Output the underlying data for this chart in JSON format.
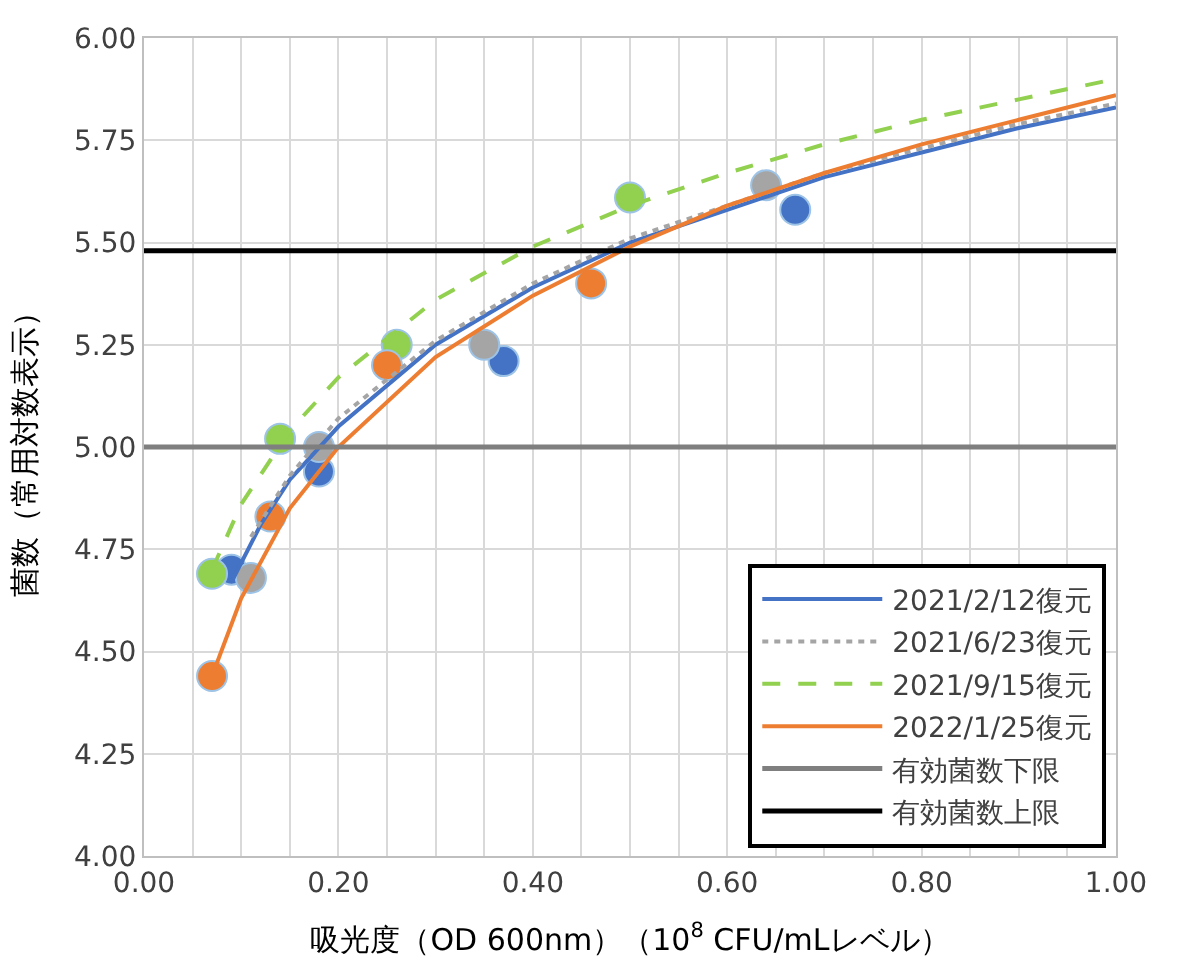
{
  "chart_data": {
    "type": "scatter",
    "xlabel": "吸光度（OD 600nm）（10$^{8}$ CFU/mLレベル）",
    "ylabel": "菌数（常用対数表示）",
    "xlim": [
      0,
      1.0
    ],
    "ylim": [
      4.0,
      6.0
    ],
    "xticks": [
      {
        "value": 0,
        "label": "0.00"
      },
      {
        "value": 0.05,
        "label": null
      },
      {
        "value": 0.1,
        "label": null
      },
      {
        "value": 0.15,
        "label": null
      },
      {
        "value": 0.2,
        "label": "0.20"
      },
      {
        "value": 0.25,
        "label": null
      },
      {
        "value": 0.3,
        "label": null
      },
      {
        "value": 0.35,
        "label": null
      },
      {
        "value": 0.4,
        "label": "0.40"
      },
      {
        "value": 0.45,
        "label": null
      },
      {
        "value": 0.5,
        "label": null
      },
      {
        "value": 0.55,
        "label": null
      },
      {
        "value": 0.6,
        "label": "0.60"
      },
      {
        "value": 0.65,
        "label": null
      },
      {
        "value": 0.7,
        "label": null
      },
      {
        "value": 0.75,
        "label": null
      },
      {
        "value": 0.8,
        "label": "0.80"
      },
      {
        "value": 0.85,
        "label": null
      },
      {
        "value": 0.9,
        "label": null
      },
      {
        "value": 0.95,
        "label": null
      },
      {
        "value": 1.0,
        "label": "1.00"
      }
    ],
    "yticks": [
      {
        "value": 4.0,
        "label": "4.00"
      },
      {
        "value": 4.25,
        "label": "4.25"
      },
      {
        "value": 4.5,
        "label": "4.50"
      },
      {
        "value": 4.75,
        "label": "4.75"
      },
      {
        "value": 5.0,
        "label": "5.00"
      },
      {
        "value": 5.25,
        "label": "5.25"
      },
      {
        "value": 5.5,
        "label": "5.50"
      },
      {
        "value": 5.75,
        "label": "5.75"
      },
      {
        "value": 6.0,
        "label": "6.00"
      }
    ],
    "grid": true,
    "legend": "bottom right",
    "series": [
      {
        "marker": "circle",
        "color": "#4472c4",
        "x": [
          0.09,
          0.18,
          0.37,
          0.67
        ],
        "values": [
          4.7,
          4.94,
          5.21,
          5.58
        ]
      },
      {
        "marker": "circle",
        "color": "#a5a5a5",
        "x": [
          0.11,
          0.18,
          0.35,
          0.64
        ],
        "values": [
          4.68,
          5.0,
          5.25,
          5.64
        ]
      },
      {
        "marker": "circle",
        "color": "#92d050",
        "x": [
          0.07,
          0.14,
          0.26,
          0.5
        ],
        "values": [
          4.69,
          5.02,
          5.25,
          5.61
        ]
      },
      {
        "marker": "circle",
        "color": "#ed7d31",
        "x": [
          0.07,
          0.13,
          0.25,
          0.46
        ],
        "values": [
          4.44,
          4.83,
          5.2,
          5.4
        ]
      },
      {
        "type": "line",
        "name": "2021/2/12復元",
        "marker": "none",
        "line_style": "solid",
        "color": "#4472c4",
        "x": [
          0.09,
          0.12,
          0.15,
          0.2,
          0.3,
          0.4,
          0.5,
          0.6,
          0.7,
          0.8,
          0.9,
          1.0
        ],
        "values": [
          4.67,
          4.81,
          4.92,
          5.05,
          5.25,
          5.39,
          5.5,
          5.58,
          5.66,
          5.72,
          5.78,
          5.83
        ]
      },
      {
        "type": "line",
        "name": "2021/6/23復元",
        "marker": "none",
        "line_style": "dotted",
        "color": "#a5a5a5",
        "x": [
          0.11,
          0.15,
          0.2,
          0.3,
          0.4,
          0.5,
          0.6,
          0.7,
          0.8,
          0.9,
          1.0
        ],
        "values": [
          4.78,
          4.93,
          5.07,
          5.26,
          5.4,
          5.51,
          5.59,
          5.67,
          5.73,
          5.79,
          5.84
        ]
      },
      {
        "type": "line",
        "name": "2021/9/15復元",
        "marker": "none",
        "line_style": "dashed",
        "color": "#92d050",
        "x": [
          0.07,
          0.1,
          0.15,
          0.2,
          0.3,
          0.4,
          0.5,
          0.6,
          0.7,
          0.8,
          0.9,
          1.0
        ],
        "values": [
          4.7,
          4.86,
          5.04,
          5.17,
          5.36,
          5.49,
          5.59,
          5.67,
          5.74,
          5.8,
          5.85,
          5.9
        ]
      },
      {
        "type": "line",
        "name": "2022/1/25復元",
        "marker": "none",
        "line_style": "solid",
        "color": "#ed7d31",
        "x": [
          0.07,
          0.1,
          0.15,
          0.2,
          0.3,
          0.4,
          0.5,
          0.6,
          0.7,
          0.8,
          0.9,
          1.0
        ],
        "values": [
          4.44,
          4.63,
          4.85,
          5.0,
          5.22,
          5.37,
          5.49,
          5.59,
          5.67,
          5.74,
          5.8,
          5.86
        ]
      }
    ],
    "ref_lines": [
      {
        "axis": "y",
        "value": 5.0,
        "label": "有効菌数下限",
        "color": "#7f7f7f",
        "line_style": "solid"
      },
      {
        "axis": "y",
        "value": 5.48,
        "label": "有効菌数上限",
        "color": "#000000",
        "line_style": "solid"
      }
    ]
  }
}
